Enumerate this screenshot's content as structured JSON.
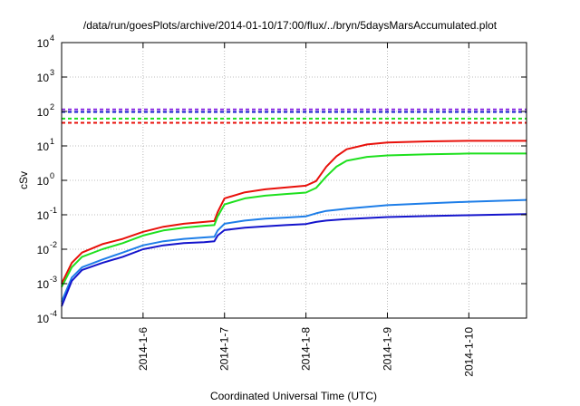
{
  "chart_data": {
    "type": "line",
    "title": "/data/run/goesPlots/archive/2014-01-10/17:00/flux/../bryn/5daysMarsAccumulated.plot",
    "xlabel": "Coordinated Universal Time (UTC)",
    "ylabel": "cSv",
    "y_scale": "log",
    "ylim": [
      0.0001,
      10000
    ],
    "y_ticks": [
      {
        "base": "10",
        "exp": "-4",
        "value": 0.0001
      },
      {
        "base": "10",
        "exp": "-3",
        "value": 0.001
      },
      {
        "base": "10",
        "exp": "-2",
        "value": 0.01
      },
      {
        "base": "10",
        "exp": "-1",
        "value": 0.1
      },
      {
        "base": "10",
        "exp": "0",
        "value": 1
      },
      {
        "base": "10",
        "exp": "1",
        "value": 10
      },
      {
        "base": "10",
        "exp": "2",
        "value": 100
      },
      {
        "base": "10",
        "exp": "3",
        "value": 1000
      },
      {
        "base": "10",
        "exp": "4",
        "value": 10000
      }
    ],
    "xlim": [
      "2014-01-05 00:00",
      "2014-01-10 17:00"
    ],
    "x_ticks": [
      "2014-1-6",
      "2014-1-7",
      "2014-1-8",
      "2014-1-9",
      "2014-1-10"
    ],
    "grid": true,
    "series": [
      {
        "color": "#e8100a",
        "style": "solid",
        "points": [
          [
            "2014-01-05 00:00",
            0.001
          ],
          [
            "2014-01-05 03:00",
            0.004
          ],
          [
            "2014-01-05 06:00",
            0.008
          ],
          [
            "2014-01-05 12:00",
            0.014
          ],
          [
            "2014-01-05 18:00",
            0.02
          ],
          [
            "2014-01-06 00:00",
            0.032
          ],
          [
            "2014-01-06 06:00",
            0.045
          ],
          [
            "2014-01-06 12:00",
            0.055
          ],
          [
            "2014-01-06 18:00",
            0.062
          ],
          [
            "2014-01-06 21:00",
            0.066
          ],
          [
            "2014-01-06 22:00",
            0.12
          ],
          [
            "2014-01-07 00:00",
            0.3
          ],
          [
            "2014-01-07 06:00",
            0.45
          ],
          [
            "2014-01-07 12:00",
            0.55
          ],
          [
            "2014-01-07 18:00",
            0.62
          ],
          [
            "2014-01-08 00:00",
            0.7
          ],
          [
            "2014-01-08 03:00",
            0.95
          ],
          [
            "2014-01-08 06:00",
            2.5
          ],
          [
            "2014-01-08 09:00",
            5
          ],
          [
            "2014-01-08 12:00",
            8
          ],
          [
            "2014-01-08 18:00",
            11
          ],
          [
            "2014-01-09 00:00",
            12.5
          ],
          [
            "2014-01-09 12:00",
            13.5
          ],
          [
            "2014-01-10 00:00",
            14
          ],
          [
            "2014-01-10 17:00",
            14
          ]
        ]
      },
      {
        "color": "#1ee01e",
        "style": "solid",
        "points": [
          [
            "2014-01-05 00:00",
            0.0008
          ],
          [
            "2014-01-05 03:00",
            0.003
          ],
          [
            "2014-01-05 06:00",
            0.006
          ],
          [
            "2014-01-05 12:00",
            0.01
          ],
          [
            "2014-01-05 18:00",
            0.015
          ],
          [
            "2014-01-06 00:00",
            0.025
          ],
          [
            "2014-01-06 06:00",
            0.035
          ],
          [
            "2014-01-06 12:00",
            0.042
          ],
          [
            "2014-01-06 18:00",
            0.048
          ],
          [
            "2014-01-06 21:00",
            0.05
          ],
          [
            "2014-01-06 22:00",
            0.09
          ],
          [
            "2014-01-07 00:00",
            0.2
          ],
          [
            "2014-01-07 06:00",
            0.3
          ],
          [
            "2014-01-07 12:00",
            0.36
          ],
          [
            "2014-01-07 18:00",
            0.4
          ],
          [
            "2014-01-08 00:00",
            0.44
          ],
          [
            "2014-01-08 03:00",
            0.6
          ],
          [
            "2014-01-08 06:00",
            1.3
          ],
          [
            "2014-01-08 09:00",
            2.5
          ],
          [
            "2014-01-08 12:00",
            3.7
          ],
          [
            "2014-01-08 18:00",
            4.8
          ],
          [
            "2014-01-09 00:00",
            5.3
          ],
          [
            "2014-01-09 12:00",
            5.7
          ],
          [
            "2014-01-10 00:00",
            6
          ],
          [
            "2014-01-10 17:00",
            6
          ]
        ]
      },
      {
        "color": "#1e7ee8",
        "style": "solid",
        "points": [
          [
            "2014-01-05 00:00",
            0.0003
          ],
          [
            "2014-01-05 03:00",
            0.0015
          ],
          [
            "2014-01-05 06:00",
            0.003
          ],
          [
            "2014-01-05 12:00",
            0.005
          ],
          [
            "2014-01-05 18:00",
            0.008
          ],
          [
            "2014-01-06 00:00",
            0.013
          ],
          [
            "2014-01-06 06:00",
            0.017
          ],
          [
            "2014-01-06 12:00",
            0.02
          ],
          [
            "2014-01-06 18:00",
            0.022
          ],
          [
            "2014-01-06 21:00",
            0.023
          ],
          [
            "2014-01-06 22:00",
            0.035
          ],
          [
            "2014-01-07 00:00",
            0.055
          ],
          [
            "2014-01-07 06:00",
            0.068
          ],
          [
            "2014-01-07 12:00",
            0.077
          ],
          [
            "2014-01-07 18:00",
            0.083
          ],
          [
            "2014-01-08 00:00",
            0.09
          ],
          [
            "2014-01-08 03:00",
            0.11
          ],
          [
            "2014-01-08 06:00",
            0.13
          ],
          [
            "2014-01-08 12:00",
            0.15
          ],
          [
            "2014-01-09 00:00",
            0.19
          ],
          [
            "2014-01-09 12:00",
            0.215
          ],
          [
            "2014-01-10 00:00",
            0.24
          ],
          [
            "2014-01-10 17:00",
            0.27
          ]
        ]
      },
      {
        "color": "#1414cc",
        "style": "solid",
        "points": [
          [
            "2014-01-05 00:00",
            0.00022
          ],
          [
            "2014-01-05 03:00",
            0.0012
          ],
          [
            "2014-01-05 06:00",
            0.0025
          ],
          [
            "2014-01-05 12:00",
            0.004
          ],
          [
            "2014-01-05 18:00",
            0.006
          ],
          [
            "2014-01-06 00:00",
            0.01
          ],
          [
            "2014-01-06 06:00",
            0.013
          ],
          [
            "2014-01-06 12:00",
            0.015
          ],
          [
            "2014-01-06 18:00",
            0.016
          ],
          [
            "2014-01-06 21:00",
            0.017
          ],
          [
            "2014-01-06 22:00",
            0.025
          ],
          [
            "2014-01-07 00:00",
            0.036
          ],
          [
            "2014-01-07 06:00",
            0.042
          ],
          [
            "2014-01-07 12:00",
            0.046
          ],
          [
            "2014-01-07 18:00",
            0.05
          ],
          [
            "2014-01-08 00:00",
            0.054
          ],
          [
            "2014-01-08 03:00",
            0.062
          ],
          [
            "2014-01-08 06:00",
            0.068
          ],
          [
            "2014-01-08 12:00",
            0.075
          ],
          [
            "2014-01-09 00:00",
            0.086
          ],
          [
            "2014-01-09 12:00",
            0.092
          ],
          [
            "2014-01-10 00:00",
            0.097
          ],
          [
            "2014-01-10 17:00",
            0.105
          ]
        ]
      },
      {
        "color": "#8a2be2",
        "style": "dashed",
        "points": [
          [
            "2014-01-05 00:00",
            115
          ],
          [
            "2014-01-10 17:00",
            115
          ]
        ]
      },
      {
        "color": "#1414cc",
        "style": "dashed",
        "points": [
          [
            "2014-01-05 00:00",
            97
          ],
          [
            "2014-01-10 17:00",
            97
          ]
        ]
      },
      {
        "color": "#1ee01e",
        "style": "dashed",
        "points": [
          [
            "2014-01-05 00:00",
            62
          ],
          [
            "2014-01-10 17:00",
            62
          ]
        ]
      },
      {
        "color": "#e8100a",
        "style": "dashed",
        "points": [
          [
            "2014-01-05 00:00",
            47
          ],
          [
            "2014-01-10 17:00",
            47
          ]
        ]
      }
    ]
  }
}
